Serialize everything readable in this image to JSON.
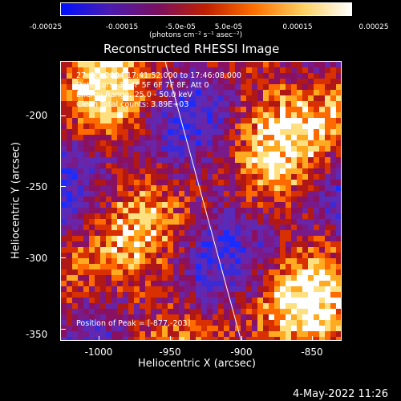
{
  "colorbar": {
    "ticks": [
      "-0.00025",
      "-0.00015",
      "-5.0e-05",
      "5.0e-05",
      "0.00015",
      "0.00025"
    ],
    "unit_label": "(photons cm⁻² s⁻¹ asec⁻²)",
    "colors": [
      "#0010ff",
      "#4a1cb0",
      "#7a1060",
      "#c02000",
      "#ff7000",
      "#ffd060",
      "#ffffff"
    ]
  },
  "title": "Reconstructed RHESSI Image",
  "info": {
    "time_range": "27-Oct-2004 17:41:52.000 to 17:46:08.000",
    "detectors": "Detectors: 3F 4F 5F 6F 7F 8F, Att 0",
    "energy": "Energy Range: 25.0 - 50.0 keV",
    "method": "Clean     Total counts: 3.89E+03",
    "peak": "Position of Peak = [-877,-203]"
  },
  "axes": {
    "xlabel": "Heliocentric X (arcsec)",
    "ylabel": "Heliocentric Y (arcsec)",
    "xticks": [
      "-1000",
      "-950",
      "-900",
      "-850"
    ],
    "yticks": [
      "-200",
      "-250",
      "-300",
      "-350"
    ]
  },
  "timestamp": "4-May-2022 11:26"
}
